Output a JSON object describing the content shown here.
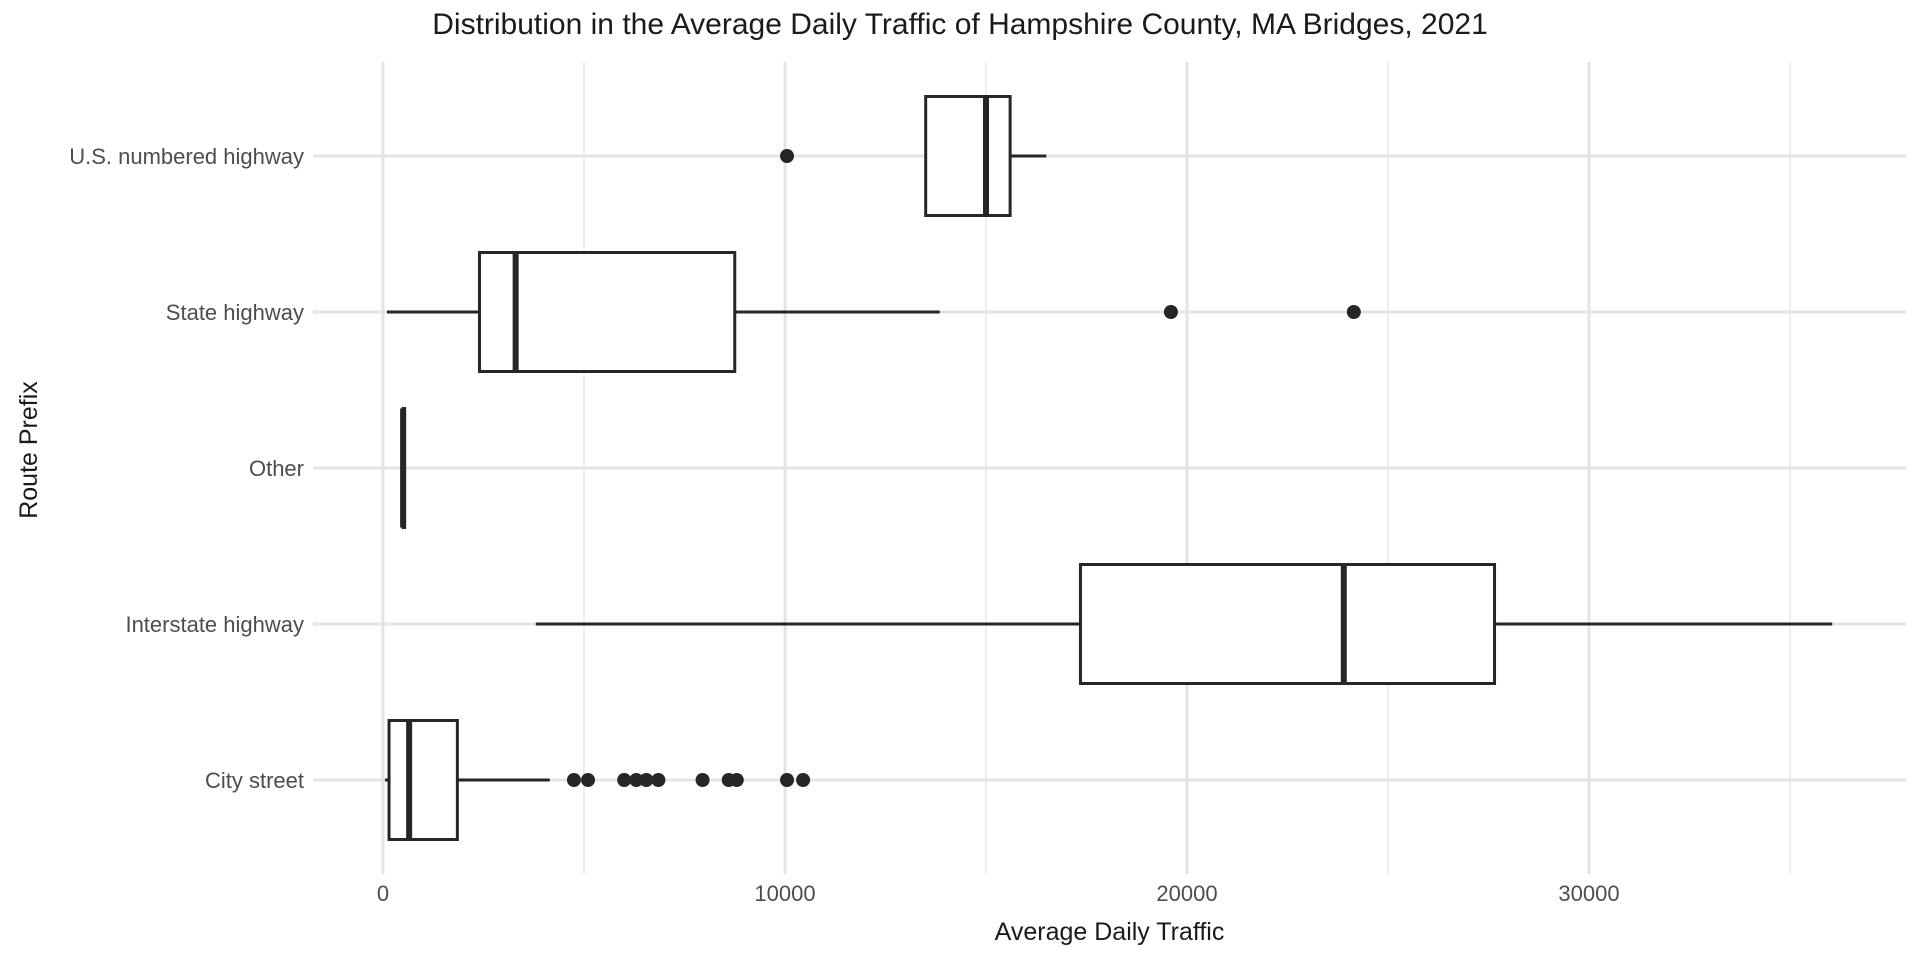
{
  "chart_data": {
    "type": "boxplot",
    "orientation": "horizontal",
    "title": "Distribution in the Average Daily Traffic of Hampshire County, MA Bridges, 2021",
    "xlabel": "Average Daily Traffic",
    "ylabel": "Route Prefix",
    "x_ticks": [
      {
        "label": "0",
        "value": 0
      },
      {
        "label": "10000",
        "value": 10000
      },
      {
        "label": "20000",
        "value": 20000
      },
      {
        "label": "30000",
        "value": 30000
      }
    ],
    "x_minor_gridlines": [
      5000,
      15000,
      25000,
      35000
    ],
    "xlim": [
      -1750,
      37900
    ],
    "grid": "on",
    "legend": "none",
    "categories_top_to_bottom": [
      "U.S. numbered highway",
      "State highway",
      "Other",
      "Interstate highway",
      "City street"
    ],
    "series": [
      {
        "category": "U.S. numbered highway",
        "whisker_low": 13500,
        "q1": 13500,
        "median": 15000,
        "q3": 15600,
        "whisker_high": 16500,
        "outliers": [
          10050
        ]
      },
      {
        "category": "State highway",
        "whisker_low": 100,
        "q1": 2400,
        "median": 3300,
        "q3": 8750,
        "whisker_high": 13850,
        "outliers": [
          19600,
          24150
        ]
      },
      {
        "category": "Other",
        "whisker_low": 500,
        "q1": 500,
        "median": 500,
        "q3": 500,
        "whisker_high": 500,
        "outliers": []
      },
      {
        "category": "Interstate highway",
        "whisker_low": 3800,
        "q1": 17350,
        "median": 23900,
        "q3": 27650,
        "whisker_high": 36050,
        "outliers": []
      },
      {
        "category": "City street",
        "whisker_low": 50,
        "q1": 150,
        "median": 650,
        "q3": 1850,
        "whisker_high": 4150,
        "outliers": [
          4750,
          5100,
          6000,
          6300,
          6550,
          6850,
          7950,
          8600,
          8800,
          10050,
          10450
        ]
      }
    ],
    "colors": {
      "background": "#ffffff",
      "box_stroke": "#262626",
      "box_fill": "#ffffff",
      "median": "#262626",
      "outlier": "#262626",
      "grid_major": "#e4e4e4",
      "grid_minor": "#eeeeee",
      "title_text": "#1a1a1a",
      "axis_title_text": "#1a1a1a",
      "tick_text": "#4d4d4d"
    }
  }
}
